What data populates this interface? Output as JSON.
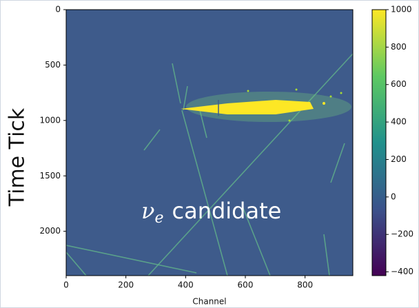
{
  "chart_data": {
    "type": "heatmap",
    "x_label": "Channel",
    "y_label": "Time Tick",
    "annotation_symbol": "ν",
    "annotation_subscript": "e",
    "annotation_text": "candidate",
    "xlim": [
      0,
      960
    ],
    "xticks": [
      0,
      200,
      400,
      600,
      800
    ],
    "ylim": [
      2400,
      0
    ],
    "yticks": [
      0,
      500,
      1000,
      1500,
      2000
    ],
    "clim": [
      -420,
      1000
    ],
    "cticks": [
      {
        "value": -400,
        "label": "−400"
      },
      {
        "value": -200,
        "label": "−200"
      },
      0,
      200,
      400,
      600,
      800,
      1000
    ],
    "colormap": [
      "#440154",
      "#3b528b",
      "#21918c",
      "#5ec962",
      "#fde725"
    ],
    "background_color": "#3e5b8b"
  }
}
